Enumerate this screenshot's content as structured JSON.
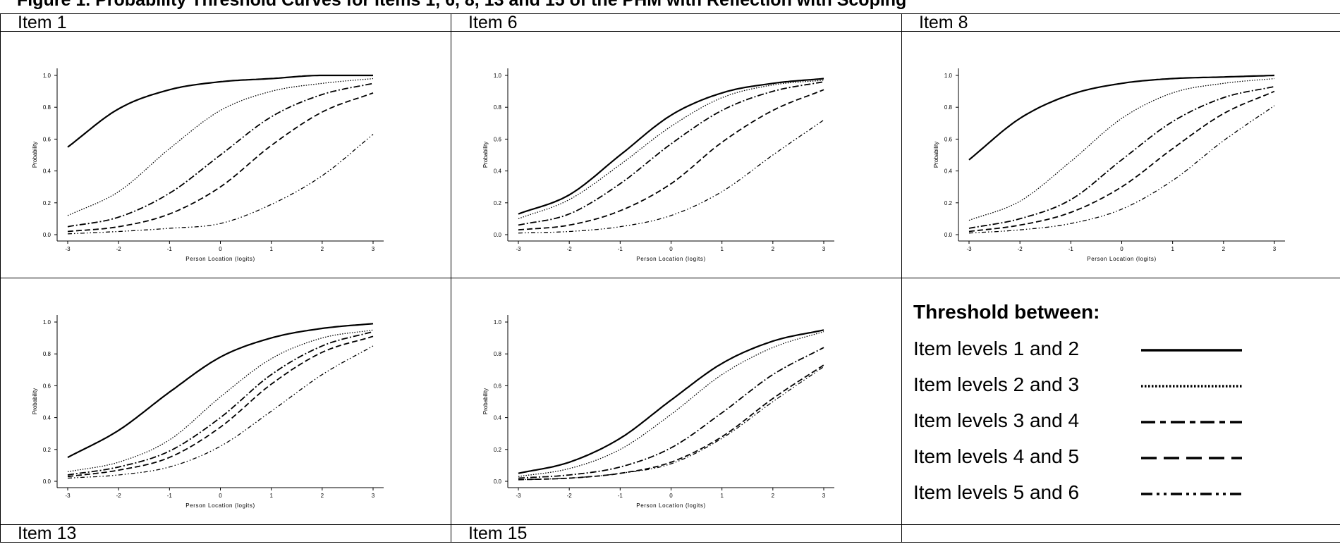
{
  "figure_title": "Figure 1. Probability Threshold Curves for Items 1, 6, 8, 13 and 15 of the PHM with Reflection with Scoping",
  "panel_labels": [
    "Item 1",
    "Item 6",
    "Item 8",
    "Item 13",
    "Item 15",
    ""
  ],
  "legend": {
    "title": "Threshold between:",
    "items": [
      {
        "label": "Item levels 1 and 2",
        "dash": "solid"
      },
      {
        "label": "Item levels 2 and 3",
        "dash": "dotted"
      },
      {
        "label": "Item levels 3 and 4",
        "dash": "dashdot"
      },
      {
        "label": "Item levels 4 and 5",
        "dash": "dashed"
      },
      {
        "label": "Item levels 5 and 6",
        "dash": "dashdotdot"
      }
    ]
  },
  "chart_data": [
    {
      "type": "line",
      "title": "Item 1",
      "xlabel": "Person Location (logits)",
      "ylabel": "Probability",
      "xlim": [
        -3,
        3
      ],
      "ylim": [
        0,
        1
      ],
      "xticks": [
        "-3",
        "-2",
        "-1",
        "0",
        "1",
        "2",
        "3"
      ],
      "yticks": [
        "0.0",
        "0.2",
        "0.4",
        "0.6",
        "0.8",
        "1.0"
      ],
      "x": [
        -3,
        -2,
        -1,
        0,
        1,
        2,
        3
      ],
      "series": [
        {
          "values": [
            0.55,
            0.79,
            0.91,
            0.96,
            0.98,
            1.0,
            1.0
          ]
        },
        {
          "values": [
            0.12,
            0.27,
            0.54,
            0.78,
            0.9,
            0.95,
            0.98
          ]
        },
        {
          "values": [
            0.05,
            0.11,
            0.26,
            0.5,
            0.74,
            0.88,
            0.95
          ]
        },
        {
          "values": [
            0.02,
            0.05,
            0.13,
            0.3,
            0.56,
            0.77,
            0.89
          ]
        },
        {
          "values": [
            0.005,
            0.02,
            0.04,
            0.07,
            0.19,
            0.37,
            0.63
          ]
        }
      ]
    },
    {
      "type": "line",
      "title": "Item 6",
      "xlabel": "Person Location (logits)",
      "ylabel": "Probability",
      "xlim": [
        -3,
        3
      ],
      "ylim": [
        0,
        1
      ],
      "xticks": [
        "-3",
        "-2",
        "-1",
        "0",
        "1",
        "2",
        "3"
      ],
      "yticks": [
        "0.0",
        "0.2",
        "0.4",
        "0.6",
        "0.8",
        "1.0"
      ],
      "x": [
        -3,
        -2,
        -1,
        0,
        1,
        2,
        3
      ],
      "series": [
        {
          "values": [
            0.13,
            0.25,
            0.5,
            0.75,
            0.89,
            0.95,
            0.98
          ]
        },
        {
          "values": [
            0.1,
            0.22,
            0.44,
            0.68,
            0.86,
            0.94,
            0.97
          ]
        },
        {
          "values": [
            0.06,
            0.13,
            0.32,
            0.57,
            0.78,
            0.9,
            0.96
          ]
        },
        {
          "values": [
            0.03,
            0.06,
            0.15,
            0.32,
            0.58,
            0.78,
            0.91
          ]
        },
        {
          "values": [
            0.01,
            0.02,
            0.05,
            0.12,
            0.27,
            0.5,
            0.72
          ]
        }
      ]
    },
    {
      "type": "line",
      "title": "Item 8",
      "xlabel": "Person Location (logits)",
      "ylabel": "Probability",
      "xlim": [
        -3,
        3
      ],
      "ylim": [
        0,
        1
      ],
      "xticks": [
        "-3",
        "-2",
        "-1",
        "0",
        "1",
        "2",
        "3"
      ],
      "yticks": [
        "0.0",
        "0.2",
        "0.4",
        "0.6",
        "0.8",
        "1.0"
      ],
      "x": [
        -3,
        -2,
        -1,
        0,
        1,
        2,
        3
      ],
      "series": [
        {
          "values": [
            0.47,
            0.73,
            0.88,
            0.95,
            0.98,
            0.99,
            1.0
          ]
        },
        {
          "values": [
            0.09,
            0.21,
            0.46,
            0.73,
            0.89,
            0.95,
            0.98
          ]
        },
        {
          "values": [
            0.04,
            0.1,
            0.22,
            0.47,
            0.71,
            0.86,
            0.93
          ]
        },
        {
          "values": [
            0.02,
            0.06,
            0.14,
            0.3,
            0.54,
            0.76,
            0.9
          ]
        },
        {
          "values": [
            0.01,
            0.03,
            0.07,
            0.16,
            0.34,
            0.59,
            0.81
          ]
        }
      ]
    },
    {
      "type": "line",
      "title": "Item 13",
      "xlabel": "Person Location (logits)",
      "ylabel": "Probability",
      "xlim": [
        -3,
        3
      ],
      "ylim": [
        0,
        1
      ],
      "xticks": [
        "-3",
        "-2",
        "-1",
        "0",
        "1",
        "2",
        "3"
      ],
      "yticks": [
        "0.0",
        "0.2",
        "0.4",
        "0.6",
        "0.8",
        "1.0"
      ],
      "x": [
        -3,
        -2,
        -1,
        0,
        1,
        2,
        3
      ],
      "series": [
        {
          "values": [
            0.15,
            0.32,
            0.56,
            0.78,
            0.9,
            0.96,
            0.99
          ]
        },
        {
          "values": [
            0.06,
            0.12,
            0.26,
            0.53,
            0.77,
            0.9,
            0.95
          ]
        },
        {
          "values": [
            0.04,
            0.09,
            0.19,
            0.4,
            0.67,
            0.85,
            0.94
          ]
        },
        {
          "values": [
            0.03,
            0.07,
            0.15,
            0.34,
            0.61,
            0.81,
            0.91
          ]
        },
        {
          "values": [
            0.02,
            0.04,
            0.09,
            0.22,
            0.44,
            0.67,
            0.85
          ]
        }
      ]
    },
    {
      "type": "line",
      "title": "Item 15",
      "xlabel": "Person Location (logits)",
      "ylabel": "Probability",
      "xlim": [
        -3,
        3
      ],
      "ylim": [
        0,
        1
      ],
      "xticks": [
        "-3",
        "-2",
        "-1",
        "0",
        "1",
        "2",
        "3"
      ],
      "yticks": [
        "0.0",
        "0.2",
        "0.4",
        "0.6",
        "0.8",
        "1.0"
      ],
      "x": [
        -3,
        -2,
        -1,
        0,
        1,
        2,
        3
      ],
      "series": [
        {
          "values": [
            0.05,
            0.12,
            0.27,
            0.51,
            0.74,
            0.88,
            0.95
          ]
        },
        {
          "values": [
            0.03,
            0.08,
            0.2,
            0.42,
            0.67,
            0.84,
            0.94
          ]
        },
        {
          "values": [
            0.02,
            0.04,
            0.09,
            0.21,
            0.43,
            0.67,
            0.84
          ]
        },
        {
          "values": [
            0.01,
            0.02,
            0.05,
            0.12,
            0.28,
            0.52,
            0.73
          ]
        },
        {
          "values": [
            0.01,
            0.02,
            0.05,
            0.11,
            0.27,
            0.5,
            0.72
          ]
        }
      ]
    }
  ]
}
